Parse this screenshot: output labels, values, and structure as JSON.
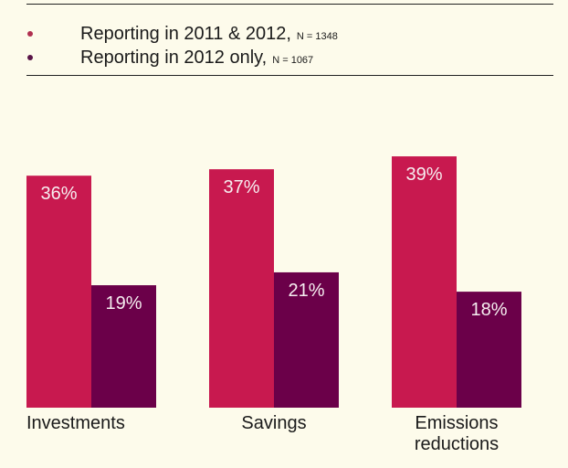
{
  "chart_data": {
    "type": "bar",
    "title": "",
    "xlabel": "",
    "ylabel": "",
    "ylim": [
      0,
      40
    ],
    "grid": false,
    "legend_position": "top",
    "categories": [
      "Investments",
      "Savings",
      "Emissions reductions"
    ],
    "category_lines": [
      [
        "Investments"
      ],
      [
        "Savings"
      ],
      [
        "Emissions",
        "reductions"
      ]
    ],
    "series": [
      {
        "name": "Reporting in 2011 & 2012",
        "n_label": "N = 1348",
        "color": "#c8194f",
        "values": [
          36,
          37,
          39
        ],
        "labels": [
          "36%",
          "37%",
          "39%"
        ]
      },
      {
        "name": "Reporting in 2012 only",
        "n_label": "N = 1067",
        "color": "#6b0049",
        "values": [
          19,
          21,
          18
        ],
        "labels": [
          "19%",
          "21%",
          "18%"
        ]
      }
    ]
  },
  "legend": {
    "items": [
      {
        "text": "Reporting in 2011 & 2012,",
        "n": "N = 1348",
        "color": "#b03050"
      },
      {
        "text": "Reporting in 2012 only,",
        "n": "N = 1067",
        "color": "#5a1548"
      }
    ]
  }
}
